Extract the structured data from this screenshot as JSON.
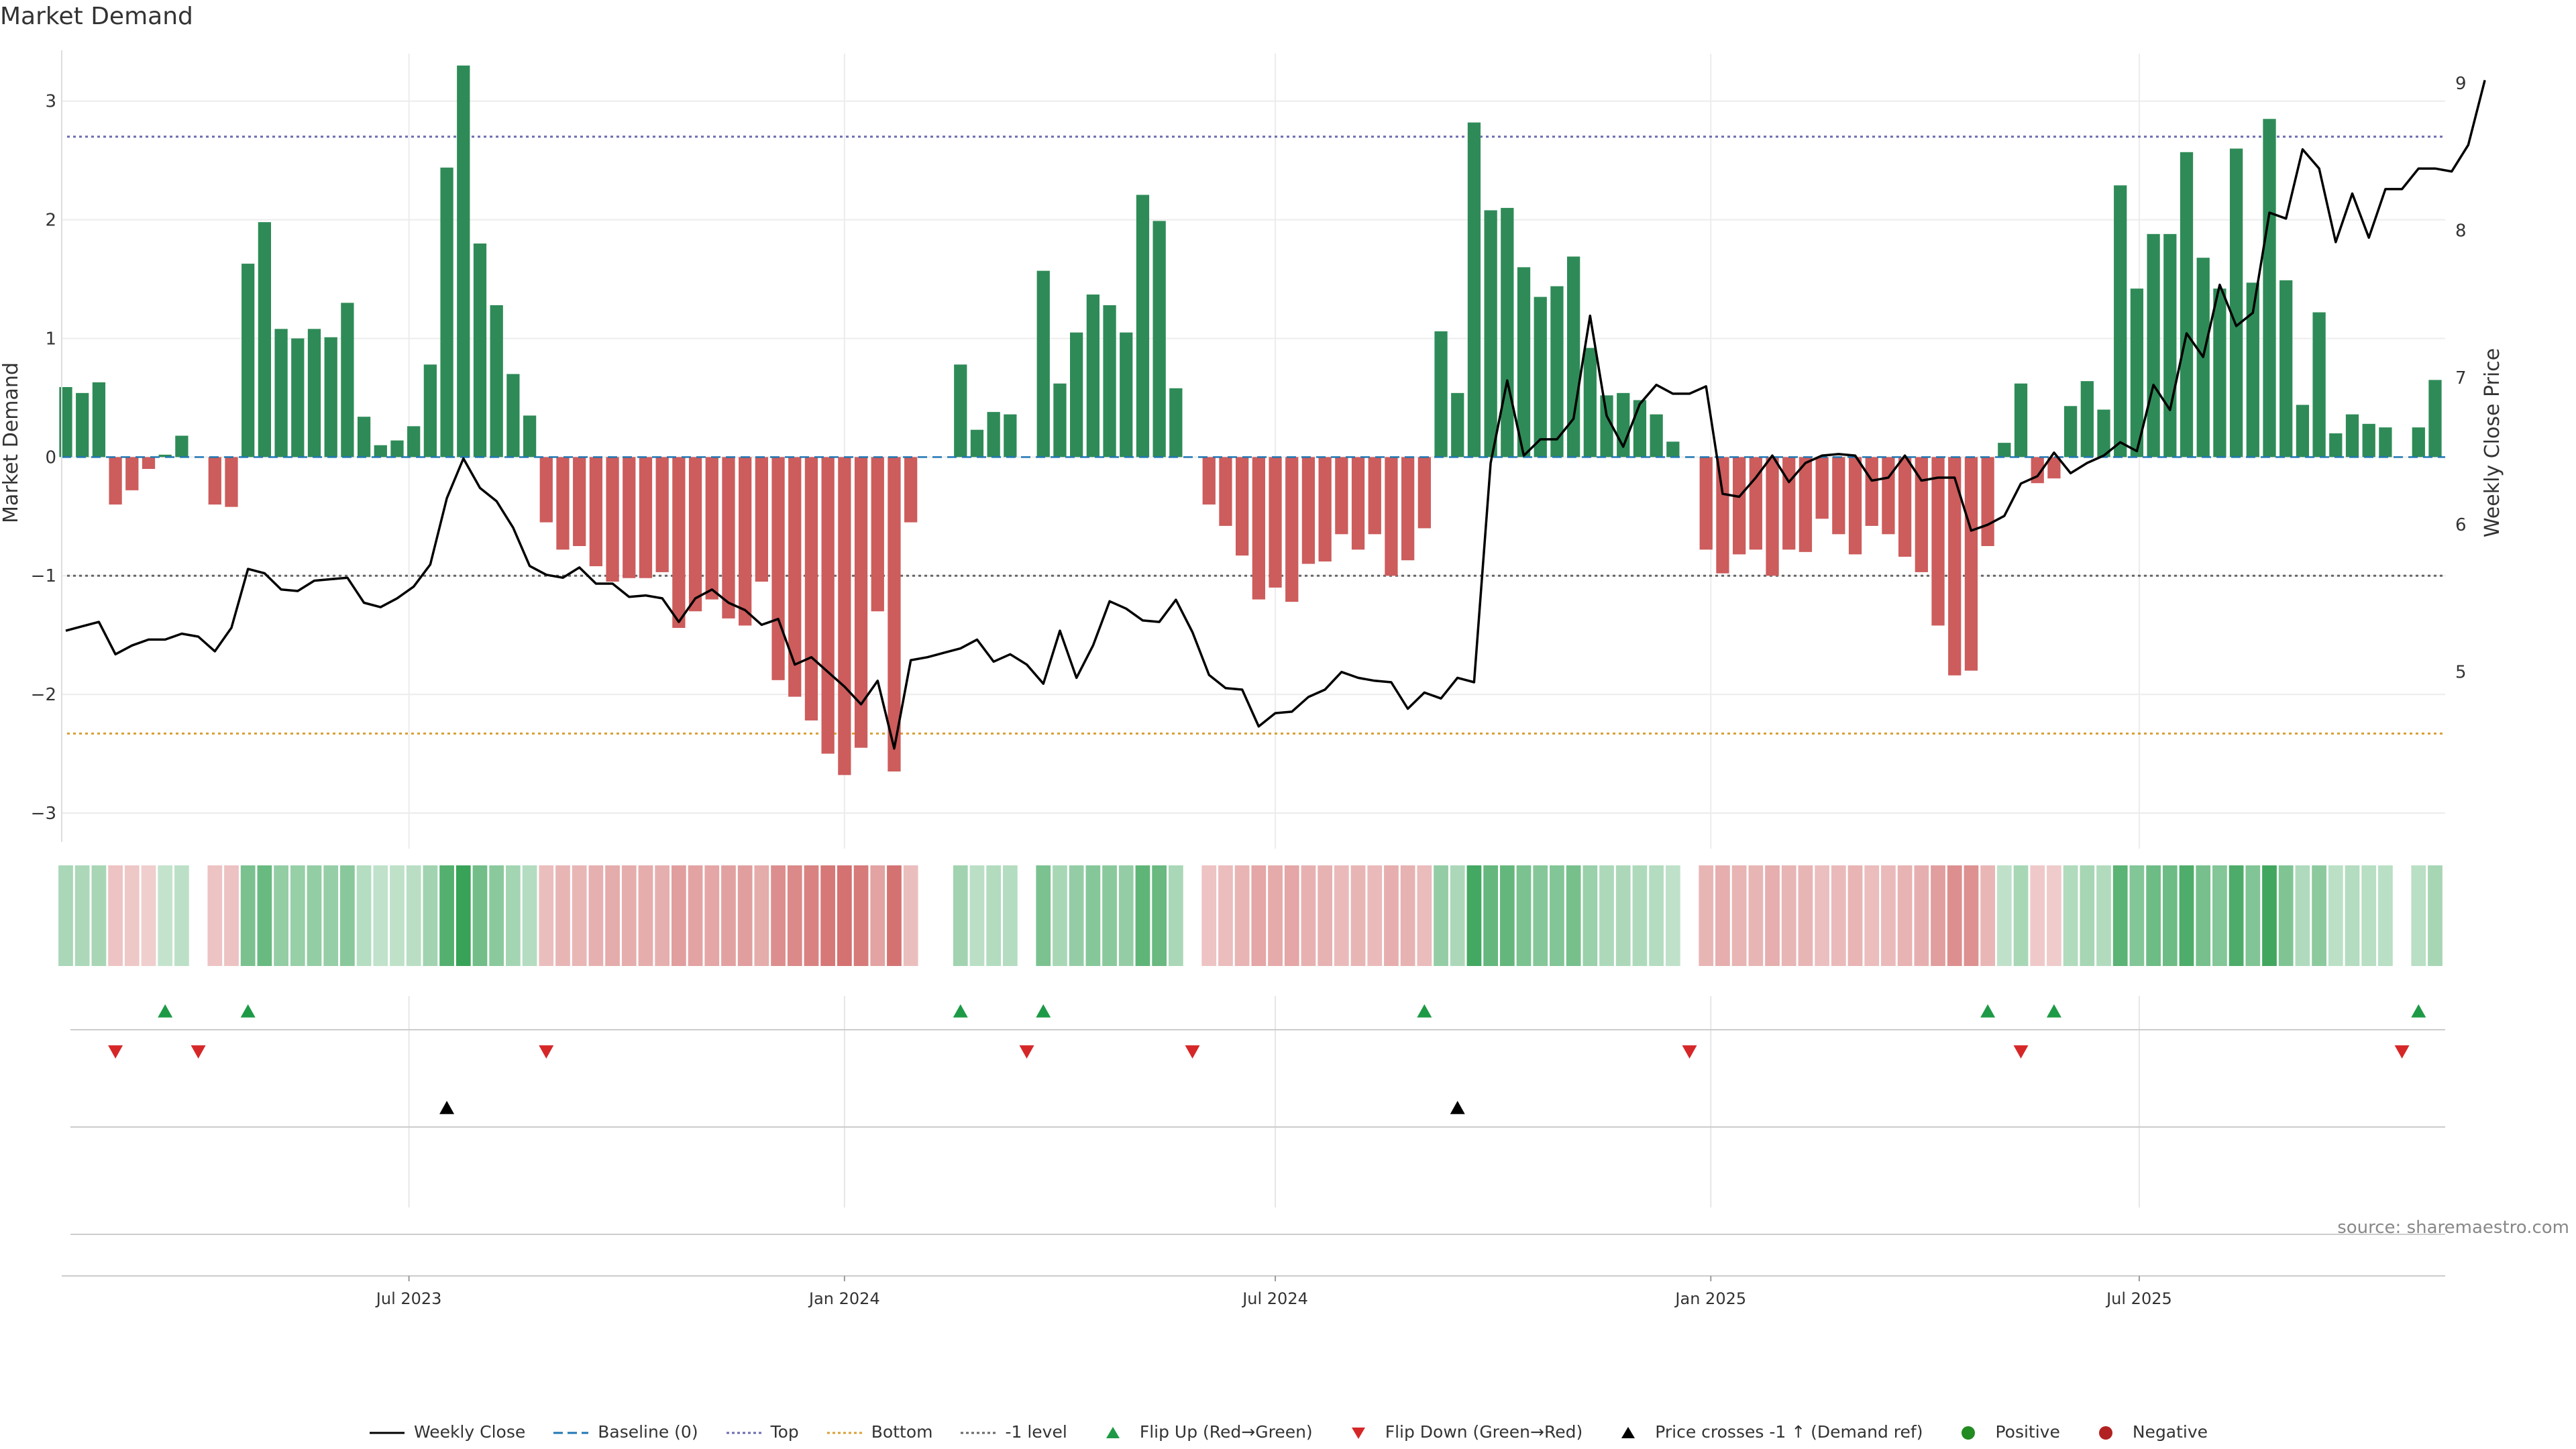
{
  "chart_data": {
    "type": "bar",
    "title": "Market Demand",
    "ylabel_left": "Market Demand",
    "ylabel_right": "Weekly Close Price",
    "ylim_left": [
      -3.3,
      3.4
    ],
    "yticks_left": [
      3,
      2,
      1,
      0,
      -1,
      -2,
      -3
    ],
    "ytick_labels_left": [
      "3",
      "2",
      "1",
      "0",
      "−1",
      "−2",
      "−3"
    ],
    "ylim_right": [
      3.8,
      9.2
    ],
    "yticks_right": [
      9,
      8,
      7,
      6,
      5
    ],
    "ytick_labels_right": [
      "9",
      "8",
      "7",
      "6",
      "5"
    ],
    "start_date": "2023-02-06",
    "x_ticks": [
      {
        "label": "Jul 2023",
        "date": "2023-07-01"
      },
      {
        "label": "Jan 2024",
        "date": "2024-01-01"
      },
      {
        "label": "Jul 2024",
        "date": "2024-07-01"
      },
      {
        "label": "Jan 2025",
        "date": "2025-01-01"
      },
      {
        "label": "Jul 2025",
        "date": "2025-07-01"
      }
    ],
    "levels": [
      {
        "name": "Top",
        "value": 2.7,
        "color": "#6b6bb0"
      },
      {
        "name": "-1 level",
        "value": -1.0,
        "color": "#666666"
      },
      {
        "name": "Bottom",
        "value": -2.33,
        "color": "#d9a036"
      }
    ],
    "series": [
      {
        "name": "Market Demand",
        "type": "bar",
        "values": [
          0.59,
          0.54,
          0.63,
          -0.4,
          -0.28,
          -0.1,
          0.02,
          0.18,
          0.0,
          -0.4,
          -0.42,
          1.63,
          1.98,
          1.08,
          1.0,
          1.08,
          1.01,
          1.3,
          0.34,
          0.1,
          0.14,
          0.26,
          0.78,
          2.44,
          3.3,
          1.8,
          1.28,
          0.7,
          0.35,
          -0.55,
          -0.78,
          -0.75,
          -0.92,
          -1.05,
          -1.02,
          -1.02,
          -0.97,
          -1.44,
          -1.3,
          -1.2,
          -1.36,
          -1.42,
          -1.05,
          -1.88,
          -2.02,
          -2.22,
          -2.5,
          -2.68,
          -2.45,
          -1.3,
          -2.65,
          -0.55,
          0.0,
          0.0,
          0.78,
          0.23,
          0.38,
          0.36,
          0.0,
          1.57,
          0.62,
          1.05,
          1.37,
          1.28,
          1.05,
          2.21,
          1.99,
          0.58,
          0.0,
          -0.4,
          -0.58,
          -0.83,
          -1.2,
          -1.1,
          -1.22,
          -0.9,
          -0.88,
          -0.65,
          -0.78,
          -0.65,
          -1.0,
          -0.87,
          -0.6,
          1.06,
          0.54,
          2.82,
          2.08,
          2.1,
          1.6,
          1.35,
          1.44,
          1.69,
          0.92,
          0.52,
          0.54,
          0.48,
          0.36,
          0.13,
          0.0,
          -0.78,
          -0.98,
          -0.82,
          -0.78,
          -1.0,
          -0.78,
          -0.8,
          -0.52,
          -0.65,
          -0.82,
          -0.58,
          -0.65,
          -0.84,
          -0.97,
          -1.42,
          -1.84,
          -1.8,
          -0.75,
          0.12,
          0.62,
          -0.22,
          -0.18,
          0.43,
          0.64,
          0.4,
          2.29,
          1.42,
          1.88,
          1.88,
          2.57,
          1.68,
          1.42,
          2.6,
          1.47,
          2.85,
          1.49,
          0.44,
          1.22,
          0.2,
          0.36,
          0.28,
          0.25,
          0.0,
          0.25,
          0.65
        ]
      },
      {
        "name": "Weekly Close",
        "type": "line",
        "axis": "right",
        "values": [
          5.28,
          5.31,
          5.34,
          5.12,
          5.18,
          5.22,
          5.22,
          5.26,
          5.24,
          5.14,
          5.3,
          5.7,
          5.67,
          5.56,
          5.55,
          5.62,
          5.63,
          5.64,
          5.47,
          5.44,
          5.5,
          5.58,
          5.73,
          6.18,
          6.45,
          6.25,
          6.16,
          5.98,
          5.72,
          5.66,
          5.64,
          5.71,
          5.6,
          5.6,
          5.51,
          5.52,
          5.5,
          5.34,
          5.5,
          5.56,
          5.47,
          5.42,
          5.32,
          5.36,
          5.05,
          5.1,
          5.0,
          4.9,
          4.78,
          4.94,
          4.48,
          5.08,
          5.1,
          5.13,
          5.16,
          5.22,
          5.07,
          5.12,
          5.05,
          4.92,
          5.28,
          4.96,
          5.18,
          5.48,
          5.43,
          5.35,
          5.34,
          5.49,
          5.27,
          4.98,
          4.89,
          4.88,
          4.63,
          4.72,
          4.73,
          4.83,
          4.88,
          5.0,
          4.96,
          4.94,
          4.93,
          4.75,
          4.86,
          4.82,
          4.96,
          4.93,
          6.42,
          6.98,
          6.47,
          6.58,
          6.58,
          6.72,
          7.42,
          6.74,
          6.53,
          6.82,
          6.95,
          6.89,
          6.89,
          6.94,
          6.21,
          6.19,
          6.32,
          6.47,
          6.29,
          6.42,
          6.47,
          6.48,
          6.47,
          6.3,
          6.32,
          6.47,
          6.3,
          6.32,
          6.32,
          5.96,
          6.0,
          6.06,
          6.28,
          6.33,
          6.49,
          6.35,
          6.42,
          6.47,
          6.56,
          6.5,
          6.95,
          6.78,
          7.3,
          7.14,
          7.63,
          7.35,
          7.44,
          8.12,
          8.08,
          8.55,
          8.42,
          7.92,
          8.25,
          7.95,
          8.28,
          8.28,
          8.42,
          8.42,
          8.4,
          8.58,
          9.02
        ]
      }
    ],
    "legend": [
      {
        "label": "Weekly Close",
        "kind": "line",
        "color": "#000000"
      },
      {
        "label": "Baseline (0)",
        "kind": "dash",
        "color": "#1f77b4"
      },
      {
        "label": "Top",
        "kind": "dot",
        "color": "#6b6bb0"
      },
      {
        "label": "Bottom",
        "kind": "dot",
        "color": "#d9a036"
      },
      {
        "label": "-1 level",
        "kind": "dot",
        "color": "#666666"
      },
      {
        "label": "Flip Up (Red→Green)",
        "kind": "tri-up",
        "color": "#1e9a46"
      },
      {
        "label": "Flip Down (Green→Red)",
        "kind": "tri-down",
        "color": "#d62728"
      },
      {
        "label": "Price crosses -1 ↑ (Demand ref)",
        "kind": "tri-up",
        "color": "#000000"
      },
      {
        "label": "Positive",
        "kind": "circle",
        "color": "#228b22"
      },
      {
        "label": "Negative",
        "kind": "circle",
        "color": "#b22222"
      }
    ],
    "flip_up_weeks": [
      6,
      11,
      54,
      59,
      82,
      116,
      120,
      142
    ],
    "flip_down_weeks": [
      3,
      8,
      29,
      58,
      68,
      98,
      118,
      141
    ],
    "price_cross_weeks": [
      23,
      84
    ],
    "colors": {
      "positive": "#2e8b57",
      "negative": "#cd5c5c",
      "price": "#000000",
      "baseline": "#1f77b4"
    }
  },
  "source": "source: sharemaestro.com"
}
